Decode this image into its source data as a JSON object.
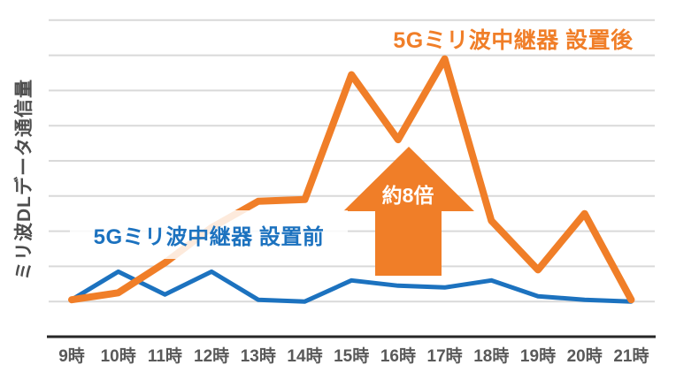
{
  "chart_data": {
    "type": "line",
    "title": "5Gミリ波中継器 設置後",
    "ylabel": "ミリ波DLデータ通信量",
    "xlabel": "",
    "categories": [
      "9時",
      "10時",
      "11時",
      "12時",
      "13時",
      "14時",
      "15時",
      "16時",
      "17時",
      "18時",
      "19時",
      "20時",
      "21時"
    ],
    "series": [
      {
        "name": "5Gミリ波中継器 設置前",
        "color": "#1C72BF",
        "values": [
          1.05,
          1.85,
          1.2,
          1.85,
          1.05,
          1.0,
          1.6,
          1.45,
          1.4,
          1.6,
          1.15,
          1.05,
          1.0
        ]
      },
      {
        "name": "5Gミリ波中継器 設置後",
        "color": "#F07E28",
        "values": [
          1.05,
          1.25,
          2.1,
          3.1,
          3.85,
          3.9,
          7.45,
          5.6,
          7.9,
          3.3,
          1.9,
          3.5,
          1.05
        ]
      }
    ],
    "ylim": [
      0,
      9
    ],
    "grid": {
      "show": true,
      "interval": 1,
      "color": "#D9D9D9",
      "axis_color": "#262626",
      "tick_label_color": "#595959",
      "ylabel_color": "#4D4D4D"
    },
    "legend_position": "inline-labels",
    "annotation": {
      "type": "up-arrow",
      "text": "約8倍",
      "color": "#F07E28",
      "text_color": "#FFFFFF",
      "meaning": "約8倍 increase between 設置前 and 設置後 peak"
    }
  }
}
